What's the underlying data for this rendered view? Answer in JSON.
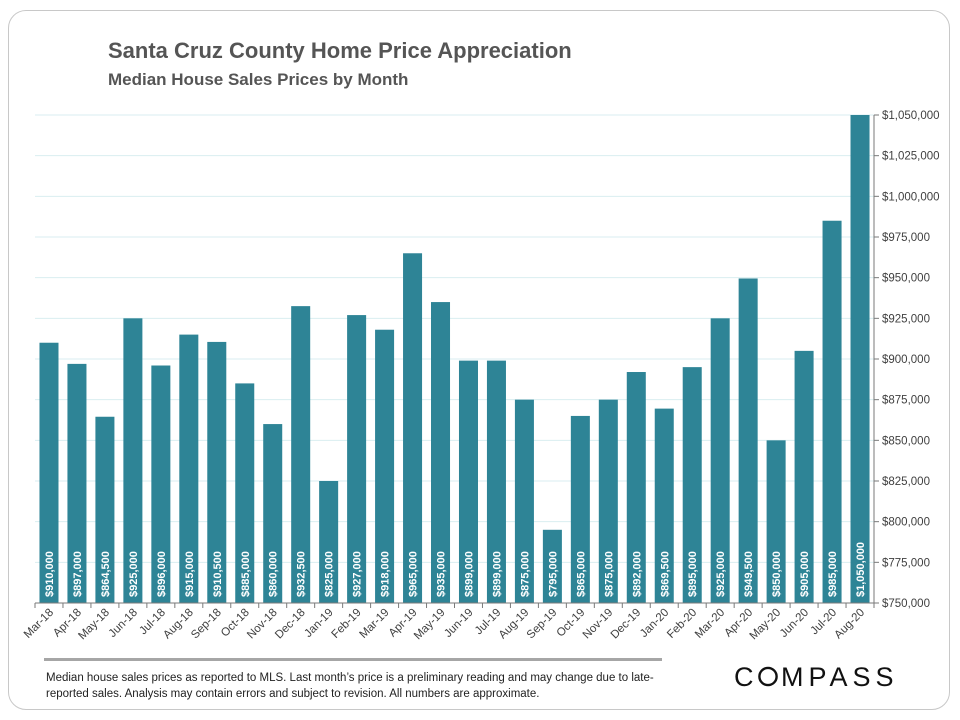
{
  "title": "Santa Cruz County Home Price Appreciation",
  "subtitle": "Median House Sales Prices by Month",
  "footnote": "Median house sales prices as reported to MLS. Last month’s price is a preliminary reading and may change due to late-reported sales. Analysis  may contain errors and subject to revision. All numbers are approximate.",
  "logo_text": "COMPASS",
  "colors": {
    "bar": "#2e8496",
    "grid": "#d9eef0",
    "text": "#404040",
    "bar_label": "#ffffff"
  },
  "chart_data": {
    "type": "bar",
    "categories": [
      "Mar-18",
      "Apr-18",
      "May-18",
      "Jun-18",
      "Jul-18",
      "Aug-18",
      "Sep-18",
      "Oct-18",
      "Nov-18",
      "Dec-18",
      "Jan-19",
      "Feb-19",
      "Mar-19",
      "Apr-19",
      "May-19",
      "Jun-19",
      "Jul-19",
      "Aug-19",
      "Sep-19",
      "Oct-19",
      "Nov-19",
      "Dec-19",
      "Jan-20",
      "Feb-20",
      "Mar-20",
      "Apr-20",
      "May-20",
      "Jun-20",
      "Jul-20",
      "Aug-20"
    ],
    "values": [
      910000,
      897000,
      864500,
      925000,
      896000,
      915000,
      910500,
      885000,
      860000,
      932500,
      825000,
      927000,
      918000,
      965000,
      935000,
      899000,
      899000,
      875000,
      795000,
      865000,
      875000,
      892000,
      869500,
      895000,
      925000,
      949500,
      850000,
      905000,
      985000,
      1050000
    ],
    "value_labels": [
      "$910,000",
      "$897,000",
      "$864,500",
      "$925,000",
      "$896,000",
      "$915,000",
      "$910,500",
      "$885,000",
      "$860,000",
      "$932,500",
      "$825,000",
      "$927,000",
      "$918,000",
      "$965,000",
      "$935,000",
      "$899,000",
      "$899,000",
      "$875,000",
      "$795,000",
      "$865,000",
      "$875,000",
      "$892,000",
      "$869,500",
      "$895,000",
      "$925,000",
      "$949,500",
      "$850,000",
      "$905,000",
      "$985,000",
      "$1,050,000"
    ],
    "ylim": [
      750000,
      1050000
    ],
    "yticks": [
      750000,
      775000,
      800000,
      825000,
      850000,
      875000,
      900000,
      925000,
      950000,
      975000,
      1000000,
      1025000,
      1050000
    ],
    "ytick_labels": [
      "$750,000",
      "$775,000",
      "$800,000",
      "$825,000",
      "$850,000",
      "$875,000",
      "$900,000",
      "$925,000",
      "$950,000",
      "$975,000",
      "$1,000,000",
      "$1,025,000",
      "$1,050,000"
    ],
    "y_axis_side": "right",
    "grid": true,
    "legend": false
  }
}
